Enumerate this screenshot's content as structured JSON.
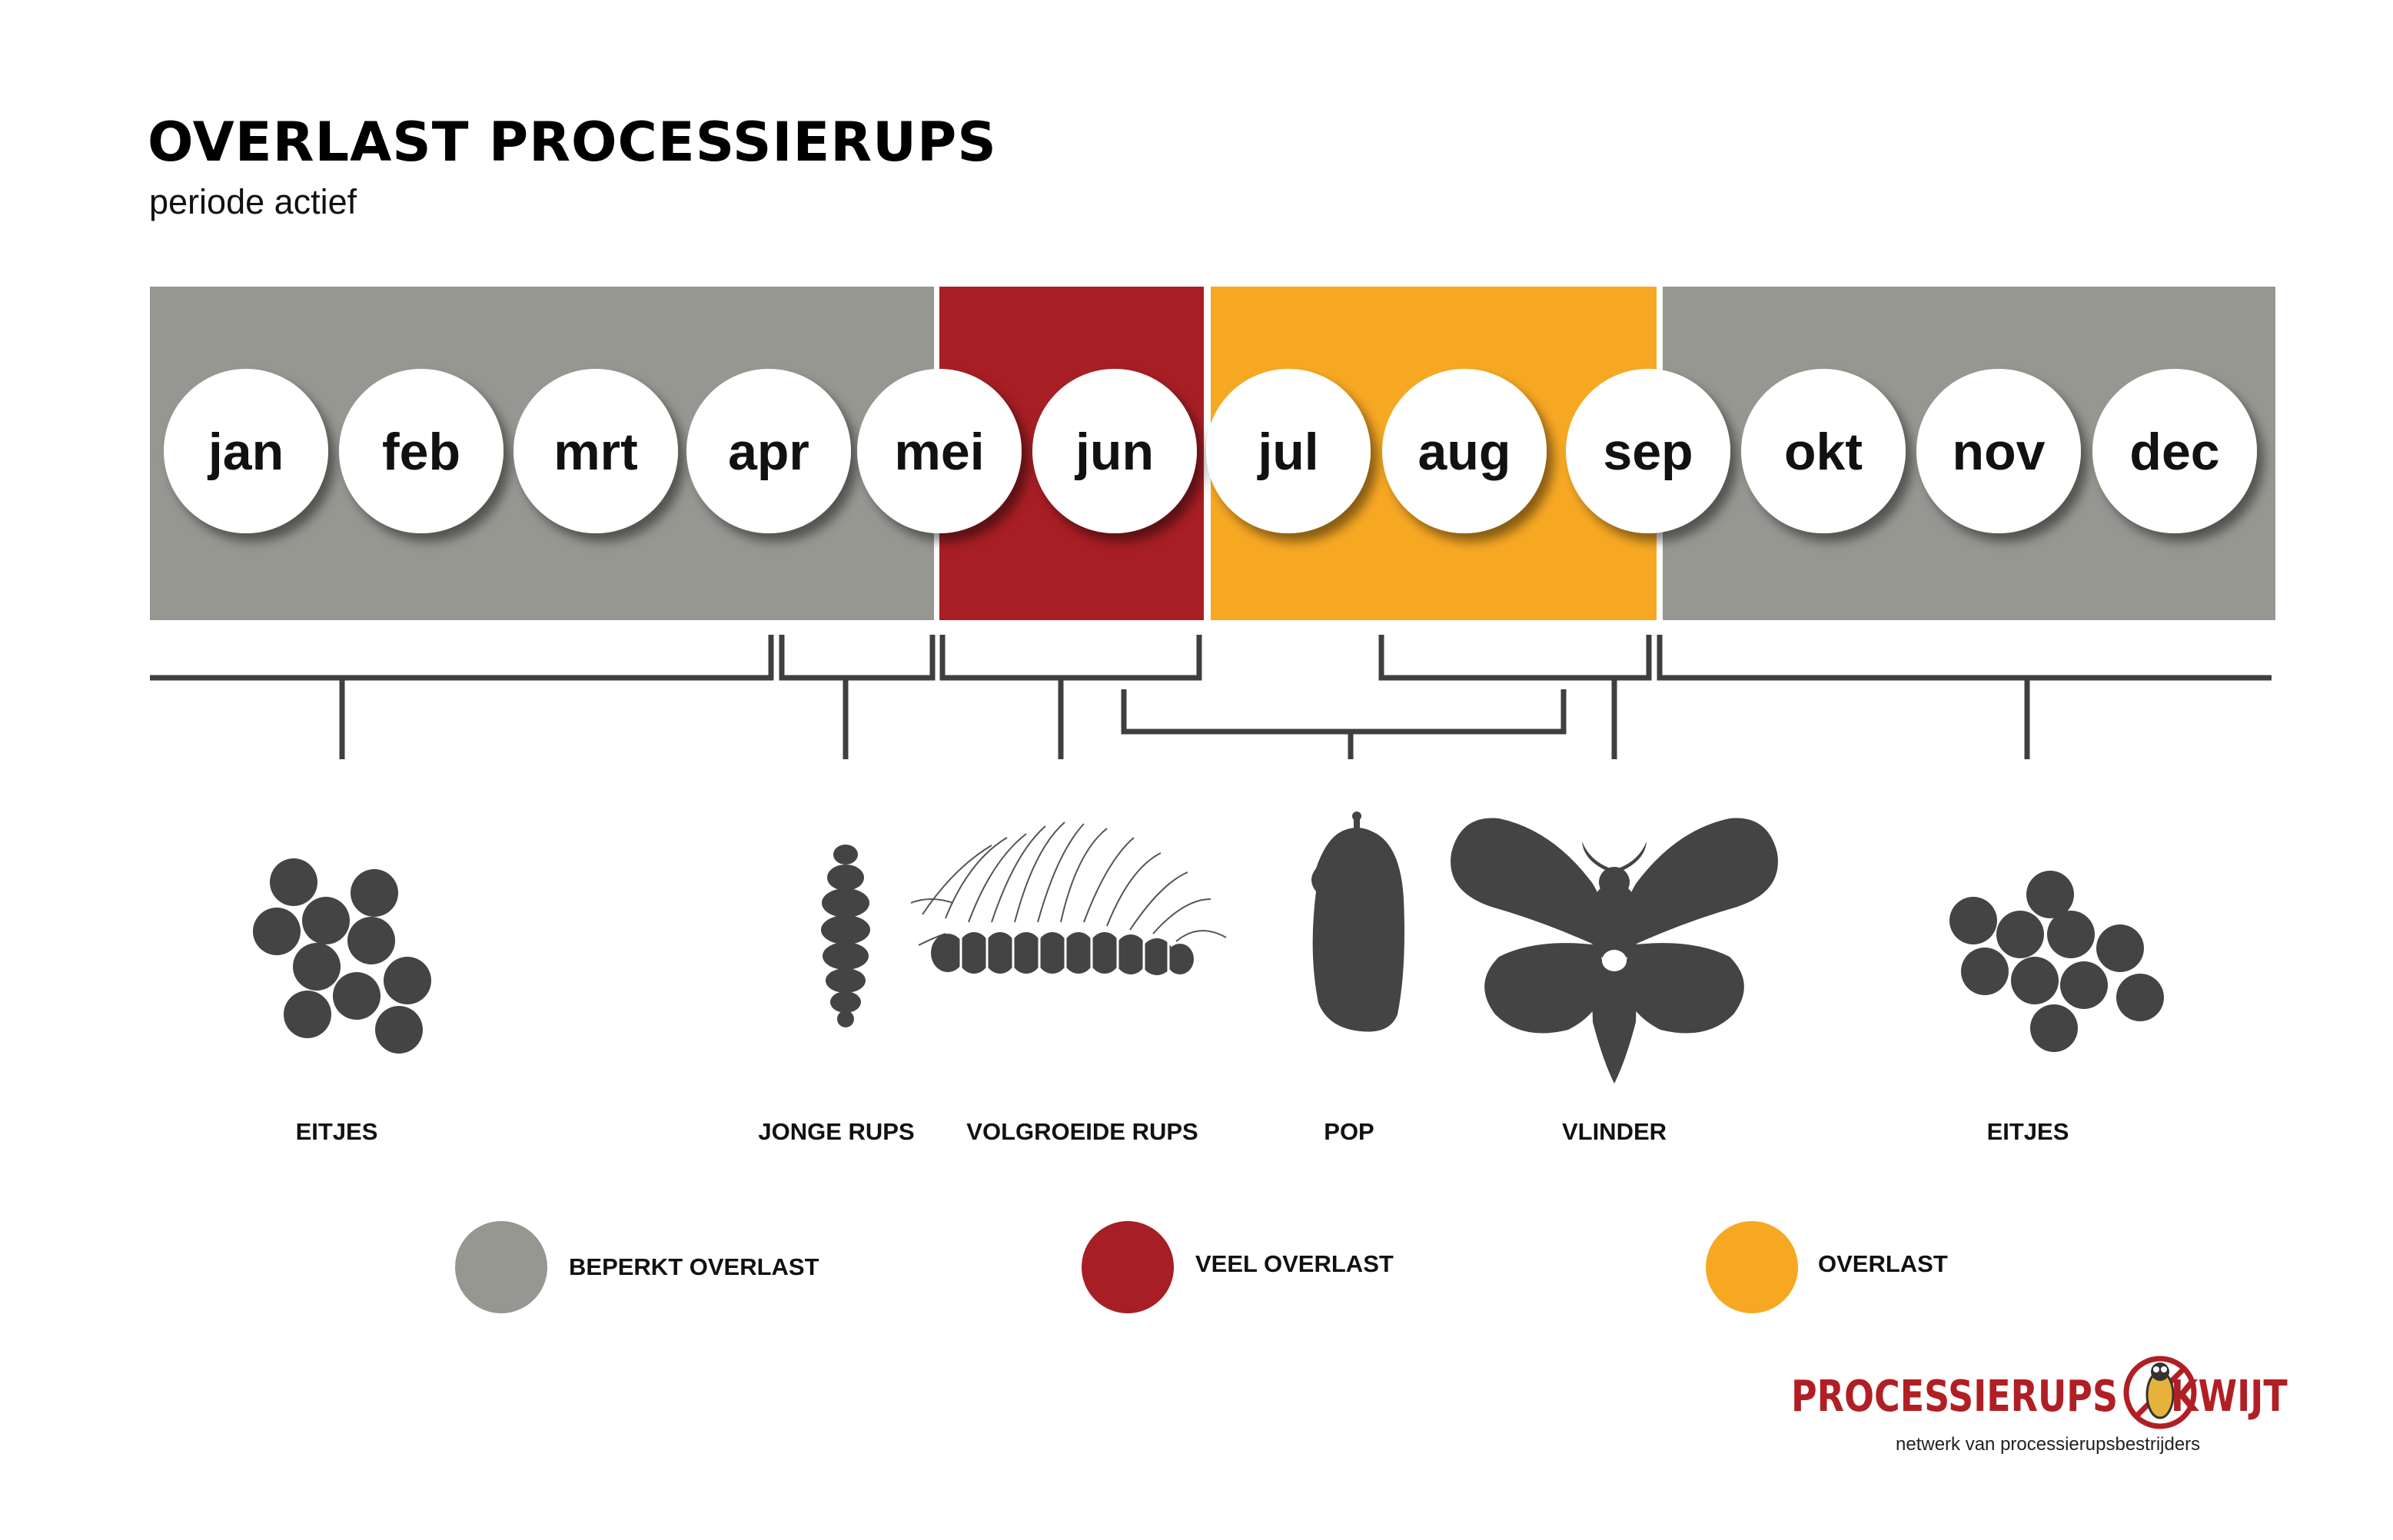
{
  "header": {
    "title": "OVERLAST PROCESSIERUPS",
    "subtitle": "periode actief"
  },
  "timeline": {
    "months": [
      "jan",
      "feb",
      "mrt",
      "apr",
      "mei",
      "jun",
      "jul",
      "aug",
      "sep",
      "okt",
      "nov",
      "dec"
    ],
    "periods": [
      {
        "months": "jan–mei",
        "level": "beperkt",
        "color": "#979792"
      },
      {
        "months": "jun",
        "level": "veel",
        "color": "#a71e24"
      },
      {
        "months": "jul–sep",
        "level": "overlast",
        "color": "#f7a823"
      },
      {
        "months": "sep–dec",
        "level": "beperkt",
        "color": "#979792"
      }
    ]
  },
  "stages": [
    {
      "label": "EITJES",
      "icon": "eggs-icon"
    },
    {
      "label": "JONGE RUPS",
      "icon": "young-caterpillar-icon"
    },
    {
      "label": "VOLGROEIDE RUPS",
      "icon": "grown-caterpillar-icon"
    },
    {
      "label": "POP",
      "icon": "pupa-icon"
    },
    {
      "label": "VLINDER",
      "icon": "moth-icon"
    },
    {
      "label": "EITJES",
      "icon": "eggs-icon"
    }
  ],
  "legend": [
    {
      "label": "BEPERKT OVERLAST",
      "color": "#979792"
    },
    {
      "label": "VEEL OVERLAST",
      "color": "#a71e24"
    },
    {
      "label": "OVERLAST",
      "color": "#f7a823"
    }
  ],
  "logo": {
    "name_left": "PROCESSIERUPS",
    "name_right": "KWIJT",
    "tagline": "netwerk van processierupsbestrijders",
    "color": "#b01f24"
  },
  "colors": {
    "icon": "#444444",
    "bracket": "#3f3f3f"
  }
}
